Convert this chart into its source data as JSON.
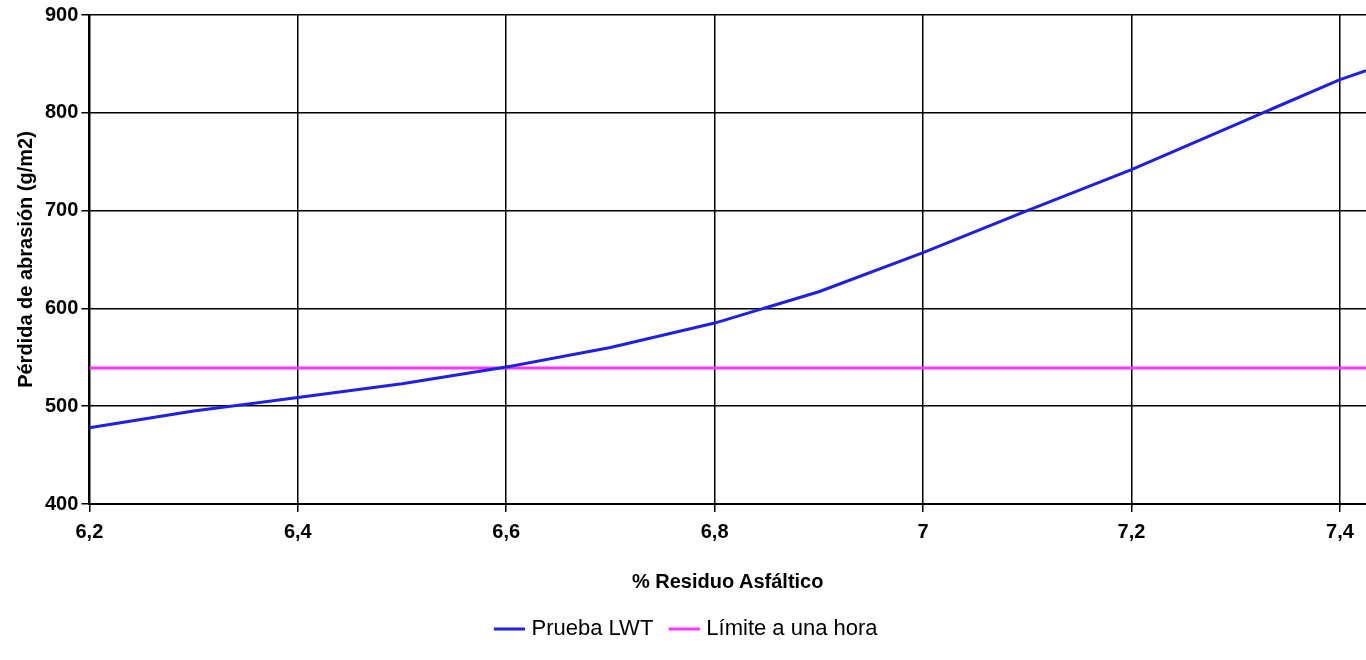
{
  "chart_data": {
    "type": "line",
    "xlabel": "% Residuo Asfáltico",
    "ylabel": "Pérdida de abrasión (g/m2)",
    "x": [
      6.2,
      6.3,
      6.4,
      6.5,
      6.6,
      6.7,
      6.8,
      6.9,
      7.0,
      7.1,
      7.2,
      7.3,
      7.4,
      7.425
    ],
    "series": [
      {
        "name": "Prueba LWT",
        "color": "#1f1fe6",
        "values": [
          478,
          495,
          509,
          523,
          540,
          560,
          585,
          617,
          657,
          700,
          742,
          788,
          834,
          843
        ]
      },
      {
        "name": "Límite a una hora",
        "color": "#ff33ff",
        "x": [
          6.2,
          7.425
        ],
        "values": [
          539,
          539
        ]
      }
    ],
    "xlim": [
      6.2,
      7.425
    ],
    "xticks": [
      {
        "value": 6.2,
        "label": "6,2"
      },
      {
        "value": 6.4,
        "label": "6,4"
      },
      {
        "value": 6.6,
        "label": "6,6"
      },
      {
        "value": 6.8,
        "label": "6,8"
      },
      {
        "value": 7,
        "label": "7"
      },
      {
        "value": 7.2,
        "label": "7,2"
      },
      {
        "value": 7.4,
        "label": "7,4"
      }
    ],
    "ylim": [
      400,
      900
    ],
    "yticks": [
      400,
      500,
      600,
      700,
      800,
      900
    ],
    "grid": true,
    "legend": "bottom",
    "marker": "none",
    "line_style": "solid"
  }
}
